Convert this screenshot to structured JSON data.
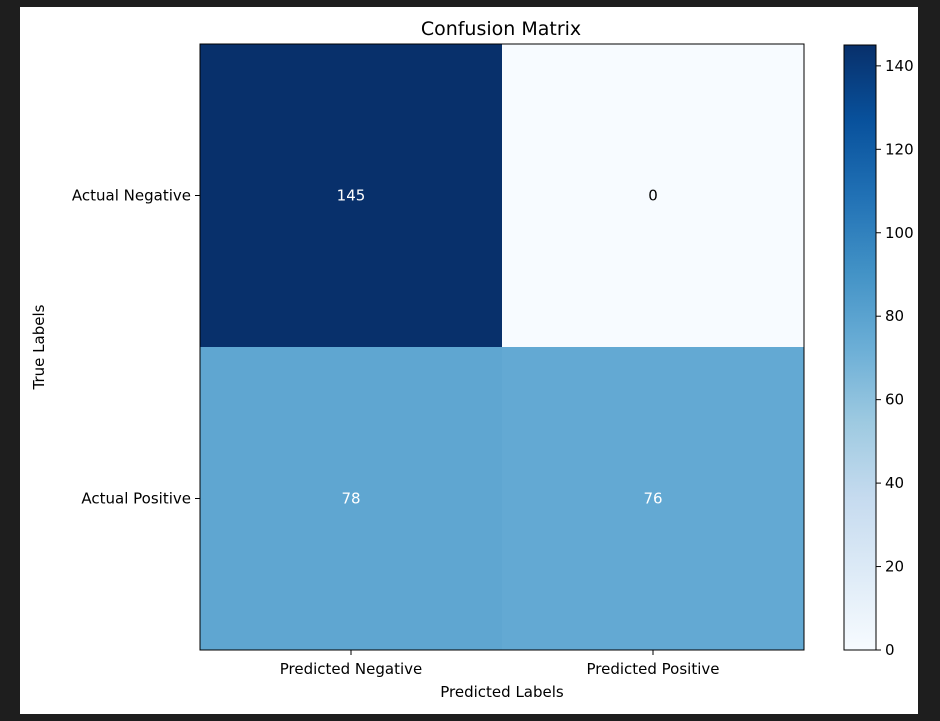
{
  "chart_data": {
    "type": "heatmap",
    "title": "Confusion Matrix",
    "xlabel": "Predicted Labels",
    "ylabel": "True Labels",
    "x_categories": [
      "Predicted Negative",
      "Predicted Positive"
    ],
    "y_categories": [
      "Actual Negative",
      "Actual Positive"
    ],
    "values": [
      [
        145,
        0
      ],
      [
        78,
        76
      ]
    ],
    "colormap": "Blues",
    "colorbar": {
      "min": 0,
      "max": 145,
      "ticks": [
        "0",
        "20",
        "40",
        "60",
        "80",
        "100",
        "120",
        "140"
      ]
    },
    "grid": false
  }
}
